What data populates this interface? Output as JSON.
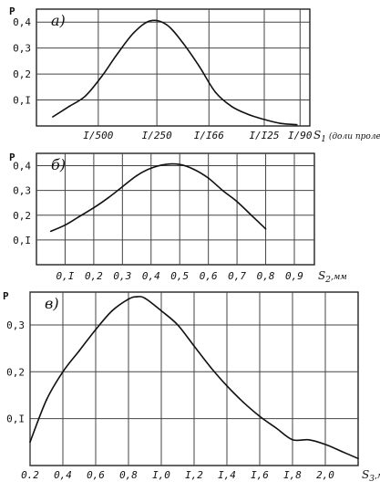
{
  "chart_data": [
    {
      "type": "line",
      "panel_label": "a)",
      "ylabel": "P",
      "xlabel": "S",
      "xlabel_sub": "1",
      "xlabel_note": "(доли пролета)",
      "x_tick_labels": [
        "I/500",
        "I/250",
        "I/I66",
        "I/I25",
        "I/90"
      ],
      "y_ticks": [
        0.1,
        0.2,
        0.3,
        0.4
      ],
      "y_tick_labels": [
        "0,I",
        "0,2",
        "0,3",
        "0,4"
      ],
      "ylim": [
        0,
        0.45
      ],
      "grid": true,
      "x": [
        0.25,
        0.5,
        0.75,
        1.0,
        1.25,
        1.5,
        1.75,
        2.0,
        2.25,
        2.5,
        2.75,
        3.0,
        3.25,
        3.5,
        3.75,
        4.0
      ],
      "y": [
        0.035,
        0.075,
        0.115,
        0.19,
        0.28,
        0.36,
        0.405,
        0.39,
        0.32,
        0.23,
        0.13,
        0.075,
        0.045,
        0.025,
        0.01,
        0.005
      ],
      "xlim": [
        0,
        4.2
      ]
    },
    {
      "type": "line",
      "panel_label": "б)",
      "ylabel": "P",
      "xlabel": "S",
      "xlabel_sub": "2",
      "xlabel_unit": ",мм",
      "x_ticks": [
        0.1,
        0.2,
        0.3,
        0.4,
        0.5,
        0.6,
        0.7,
        0.8,
        0.9
      ],
      "x_tick_labels": [
        "0,I",
        "0,2",
        "0,3",
        "0,4",
        "0,5",
        "0,6",
        "0,7",
        "0,8",
        "0,9"
      ],
      "y_ticks": [
        0.1,
        0.2,
        0.3,
        0.4
      ],
      "y_tick_labels": [
        "0,I",
        "0,2",
        "0,3",
        "0,4"
      ],
      "xlim": [
        0.0,
        0.97
      ],
      "ylim": [
        0,
        0.45
      ],
      "grid": true,
      "x": [
        0.05,
        0.1,
        0.15,
        0.2,
        0.25,
        0.3,
        0.35,
        0.4,
        0.45,
        0.5,
        0.55,
        0.6,
        0.65,
        0.7,
        0.75,
        0.8
      ],
      "y": [
        0.135,
        0.16,
        0.195,
        0.23,
        0.27,
        0.315,
        0.36,
        0.39,
        0.405,
        0.405,
        0.385,
        0.35,
        0.3,
        0.255,
        0.2,
        0.145
      ]
    },
    {
      "type": "line",
      "panel_label": "в)",
      "ylabel": "P",
      "xlabel": "S",
      "xlabel_sub": "3",
      "xlabel_unit": ",мм",
      "x_ticks": [
        0.2,
        0.4,
        0.6,
        0.8,
        1.0,
        1.2,
        1.4,
        1.6,
        1.8,
        2.0
      ],
      "x_tick_labels": [
        "0.2",
        "0,4",
        "0,6",
        "0,8",
        "I,0",
        "I,2",
        "I,4",
        "I,6",
        "I,8",
        "2,0"
      ],
      "y_ticks": [
        0.1,
        0.2,
        0.3
      ],
      "y_tick_labels": [
        "0,I",
        "0,2",
        "0,3"
      ],
      "xlim": [
        0.2,
        2.2
      ],
      "ylim": [
        0,
        0.37
      ],
      "grid": true,
      "x": [
        0.2,
        0.3,
        0.4,
        0.5,
        0.6,
        0.7,
        0.8,
        0.85,
        0.9,
        1.0,
        1.1,
        1.2,
        1.3,
        1.4,
        1.5,
        1.6,
        1.7,
        1.8,
        1.9,
        2.0,
        2.1,
        2.2
      ],
      "y": [
        0.05,
        0.14,
        0.2,
        0.245,
        0.29,
        0.33,
        0.355,
        0.36,
        0.357,
        0.33,
        0.3,
        0.255,
        0.21,
        0.17,
        0.135,
        0.105,
        0.08,
        0.055,
        0.055,
        0.045,
        0.03,
        0.015
      ]
    }
  ]
}
